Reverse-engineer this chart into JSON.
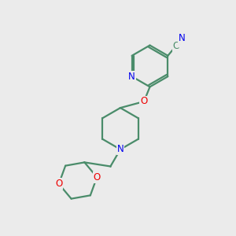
{
  "background_color": "#ebebeb",
  "bond_color": "#4a8c6a",
  "atom_colors": {
    "N": "#0000ee",
    "O": "#ee0000",
    "C": "#4a8c6a"
  },
  "figsize": [
    3.0,
    3.0
  ],
  "dpi": 100
}
